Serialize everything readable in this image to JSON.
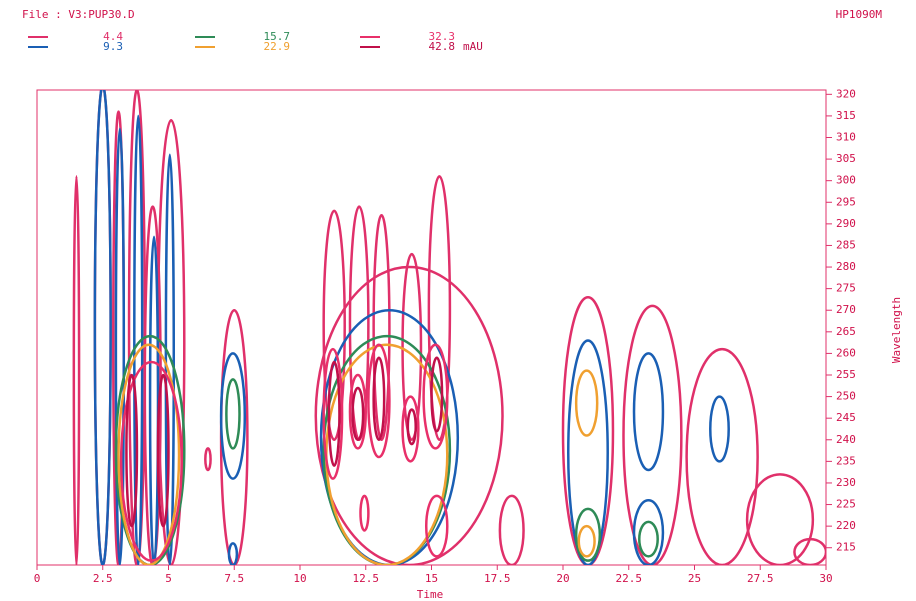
{
  "chart_data": {
    "type": "contour",
    "title": "File : V3:PUP30.D",
    "instrument": "HP1090M",
    "unit": "mAU",
    "x_label": "Time",
    "y_label": "Wavelength",
    "xlim": [
      0,
      30
    ],
    "xticks": [
      0,
      2.5,
      5,
      7.5,
      10,
      12.5,
      15,
      17.5,
      20,
      22.5,
      25,
      27.5,
      30
    ],
    "ylim": [
      211,
      321
    ],
    "yticks": [
      215,
      220,
      225,
      230,
      235,
      240,
      245,
      250,
      255,
      260,
      265,
      270,
      275,
      280,
      285,
      290,
      295,
      300,
      305,
      310,
      315,
      320
    ],
    "series": [
      {
        "name": "4.4",
        "color": "#e0306a",
        "contours": [
          [
            1.4,
            1.6,
            211,
            301
          ],
          [
            2.2,
            2.8,
            211,
            322
          ],
          [
            2.9,
            3.3,
            211,
            316
          ],
          [
            3.5,
            4.1,
            211,
            321
          ],
          [
            4.1,
            4.7,
            211,
            294
          ],
          [
            4.6,
            5.6,
            211,
            314
          ],
          [
            7.0,
            8.0,
            211,
            270
          ],
          [
            6.4,
            6.6,
            233,
            238
          ],
          [
            10.9,
            11.7,
            240,
            293
          ],
          [
            11.9,
            12.6,
            240,
            294
          ],
          [
            12.8,
            13.4,
            240,
            292
          ],
          [
            13.9,
            14.6,
            240,
            283
          ],
          [
            14.9,
            15.7,
            240,
            301
          ],
          [
            10.6,
            17.7,
            211,
            280
          ],
          [
            17.6,
            18.5,
            211,
            227
          ],
          [
            20.0,
            21.9,
            211,
            273
          ],
          [
            22.3,
            24.5,
            211,
            271
          ],
          [
            24.7,
            27.4,
            211,
            261
          ],
          [
            27.0,
            29.5,
            211,
            232
          ],
          [
            28.8,
            30,
            211,
            217
          ]
        ]
      },
      {
        "name": "9.3",
        "color": "#1a5fb4",
        "contours": [
          [
            2.2,
            2.8,
            211,
            322
          ],
          [
            3.0,
            3.3,
            211,
            312
          ],
          [
            3.7,
            4.0,
            211,
            315
          ],
          [
            4.3,
            4.6,
            211,
            287
          ],
          [
            4.9,
            5.2,
            211,
            306
          ],
          [
            7.0,
            7.9,
            231,
            260
          ],
          [
            7.3,
            7.6,
            211,
            216
          ],
          [
            10.8,
            16.0,
            211,
            270
          ],
          [
            20.2,
            21.7,
            211,
            263
          ],
          [
            22.7,
            23.8,
            233,
            260
          ],
          [
            22.7,
            23.8,
            211,
            226
          ],
          [
            25.6,
            26.3,
            235,
            250
          ]
        ]
      },
      {
        "name": "15.7",
        "color": "#2e8b57",
        "contours": [
          [
            3.0,
            5.6,
            211,
            264
          ],
          [
            7.2,
            7.7,
            238,
            254
          ],
          [
            10.9,
            15.7,
            211,
            264
          ],
          [
            20.5,
            21.4,
            212,
            224
          ],
          [
            22.9,
            23.6,
            213,
            221
          ]
        ]
      },
      {
        "name": "22.9",
        "color": "#f0a030",
        "contours": [
          [
            3.1,
            5.4,
            211,
            262
          ],
          [
            11.0,
            15.6,
            211,
            262
          ],
          [
            20.5,
            21.3,
            241,
            256
          ],
          [
            20.6,
            21.2,
            213,
            220
          ]
        ]
      },
      {
        "name": "32.3",
        "color": "#e8306a",
        "contours": [
          [
            3.2,
            5.5,
            212,
            258
          ],
          [
            10.9,
            11.6,
            231,
            261
          ],
          [
            11.9,
            12.5,
            238,
            255
          ],
          [
            12.6,
            13.4,
            236,
            262
          ],
          [
            13.9,
            14.5,
            235,
            250
          ],
          [
            14.7,
            15.6,
            238,
            262
          ],
          [
            14.8,
            15.6,
            213,
            227
          ],
          [
            12.3,
            12.6,
            219,
            227
          ]
        ]
      },
      {
        "name": "42.8",
        "color": "#c0104a",
        "contours": [
          [
            11.1,
            11.5,
            234,
            258
          ],
          [
            12.0,
            12.4,
            240,
            252
          ],
          [
            12.8,
            13.2,
            240,
            259
          ],
          [
            14.1,
            14.4,
            239,
            247
          ],
          [
            15.0,
            15.4,
            242,
            259
          ],
          [
            3.4,
            3.8,
            220,
            255
          ],
          [
            4.6,
            5.0,
            220,
            255
          ]
        ]
      }
    ]
  }
}
